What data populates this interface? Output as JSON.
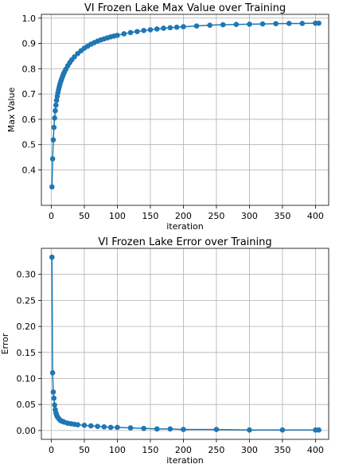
{
  "chart_data": [
    {
      "type": "line",
      "title": "VI Frozen Lake  Max Value over Training",
      "xlabel": "iteration",
      "ylabel": "Max Value",
      "xlim": [
        -15,
        420
      ],
      "ylim": [
        0.26,
        1.015
      ],
      "xticks": [
        0,
        50,
        100,
        150,
        200,
        250,
        300,
        350,
        400
      ],
      "yticks": [
        0.4,
        0.5,
        0.6,
        0.7,
        0.8,
        0.9,
        1.0
      ],
      "ytick_labels": [
        "0.4",
        "0.5",
        "0.6",
        "0.7",
        "0.8",
        "0.9",
        "1.0"
      ],
      "grid": true,
      "marker": "circle",
      "color": "#1f77b4",
      "series": [
        {
          "x": [
            1,
            2,
            3,
            4,
            5,
            6,
            7,
            8,
            9,
            10,
            11,
            12,
            13,
            14,
            15,
            16,
            17,
            18,
            19,
            20,
            22,
            25,
            28,
            31,
            35,
            40,
            45,
            50,
            55,
            60,
            65,
            70,
            75,
            80,
            85,
            90,
            95,
            100,
            110,
            120,
            130,
            140,
            150,
            160,
            170,
            180,
            190,
            200,
            220,
            240,
            260,
            280,
            300,
            320,
            340,
            360,
            380,
            400,
            405
          ],
          "y": [
            0.333,
            0.444,
            0.519,
            0.568,
            0.605,
            0.634,
            0.656,
            0.675,
            0.691,
            0.705,
            0.717,
            0.728,
            0.738,
            0.747,
            0.755,
            0.762,
            0.769,
            0.776,
            0.782,
            0.788,
            0.798,
            0.812,
            0.824,
            0.835,
            0.847,
            0.86,
            0.871,
            0.881,
            0.889,
            0.897,
            0.903,
            0.909,
            0.914,
            0.918,
            0.922,
            0.926,
            0.929,
            0.932,
            0.938,
            0.943,
            0.947,
            0.951,
            0.954,
            0.957,
            0.96,
            0.962,
            0.964,
            0.966,
            0.969,
            0.972,
            0.974,
            0.975,
            0.976,
            0.977,
            0.978,
            0.979,
            0.979,
            0.98,
            0.98
          ]
        }
      ]
    },
    {
      "type": "line",
      "title": "VI Frozen Lake Error over Training",
      "xlabel": "iteration",
      "ylabel": "Error",
      "xlim": [
        -15,
        420
      ],
      "ylim": [
        -0.017,
        0.35
      ],
      "xticks": [
        0,
        50,
        100,
        150,
        200,
        250,
        300,
        350,
        400
      ],
      "yticks": [
        0.0,
        0.05,
        0.1,
        0.15,
        0.2,
        0.25,
        0.3
      ],
      "ytick_labels": [
        "0.00",
        "0.05",
        "0.10",
        "0.15",
        "0.20",
        "0.25",
        "0.30"
      ],
      "grid": true,
      "marker": "circle",
      "color": "#1f77b4",
      "series": [
        {
          "x": [
            1,
            2,
            3,
            4,
            5,
            6,
            7,
            8,
            9,
            10,
            12,
            14,
            16,
            18,
            20,
            25,
            30,
            35,
            40,
            50,
            60,
            70,
            80,
            90,
            100,
            120,
            140,
            160,
            180,
            200,
            250,
            300,
            350,
            400,
            405
          ],
          "y": [
            0.333,
            0.111,
            0.074,
            0.062,
            0.049,
            0.04,
            0.034,
            0.03,
            0.027,
            0.025,
            0.022,
            0.019,
            0.018,
            0.017,
            0.016,
            0.014,
            0.013,
            0.012,
            0.011,
            0.01,
            0.009,
            0.008,
            0.007,
            0.006,
            0.006,
            0.005,
            0.004,
            0.003,
            0.003,
            0.002,
            0.002,
            0.001,
            0.001,
            0.001,
            0.001
          ]
        }
      ]
    }
  ]
}
